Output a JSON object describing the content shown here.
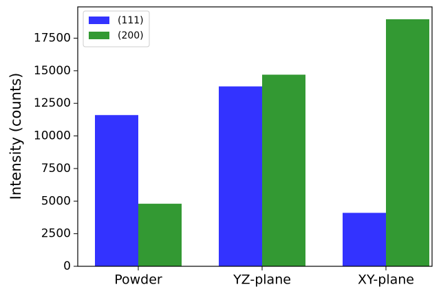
{
  "chart_data": {
    "type": "bar",
    "ylabel": "Intensity (counts)",
    "categories": [
      "Powder",
      "YZ-plane",
      "XY-plane"
    ],
    "series": [
      {
        "name": "(111)",
        "color": "#3333ff",
        "values": [
          11600,
          13800,
          4100
        ]
      },
      {
        "name": "(200)",
        "color": "#339933",
        "values": [
          4800,
          14700,
          18950
        ]
      }
    ],
    "ylim": [
      0,
      19900
    ],
    "yticks": [
      0,
      2500,
      5000,
      7500,
      10000,
      12500,
      15000,
      17500
    ],
    "legend": "upper left"
  }
}
